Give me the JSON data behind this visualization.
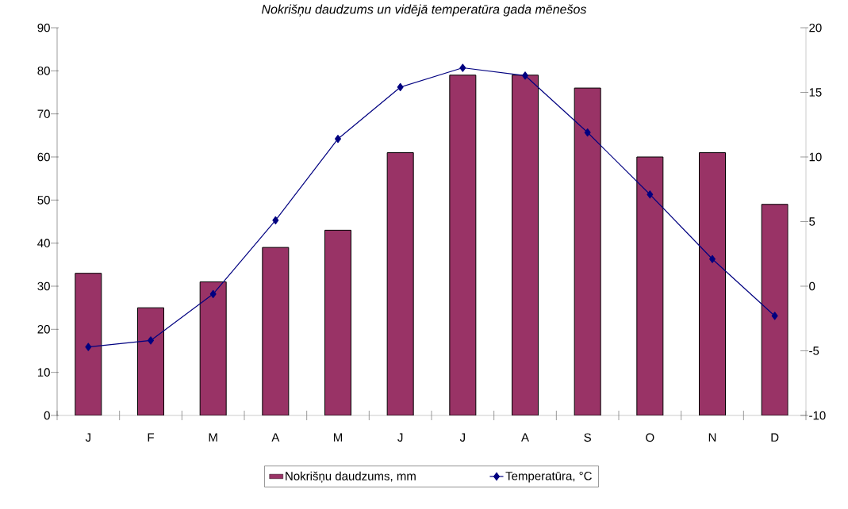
{
  "chart_data": {
    "type": "bar",
    "title": "Nokrišņu daudzums un vidējā temperatūra gada mēnešos",
    "categories": [
      "J",
      "F",
      "M",
      "A",
      "M",
      "J",
      "J",
      "A",
      "S",
      "O",
      "N",
      "D"
    ],
    "series": [
      {
        "name": "Nokrišņu daudzums, mm",
        "color": "#993366",
        "values": [
          33,
          25,
          31,
          39,
          43,
          61,
          79,
          79,
          76,
          60,
          61,
          49
        ]
      },
      {
        "name": "Temperatūra, °C",
        "type": "line",
        "axis": "y2",
        "color": "#000080",
        "marker": "diamond",
        "values": [
          -4.7,
          -4.2,
          -0.6,
          5.1,
          11.4,
          15.4,
          16.9,
          16.3,
          11.9,
          7.1,
          2.1,
          -2.3
        ]
      }
    ],
    "ylim": [
      0,
      90
    ],
    "yticks": [
      0,
      10,
      20,
      30,
      40,
      50,
      60,
      70,
      80,
      90
    ],
    "y2lim": [
      -10,
      20
    ],
    "y2ticks": [
      -10,
      -5,
      0,
      5,
      10,
      15,
      20
    ],
    "legend": "bottom",
    "grid": false
  }
}
